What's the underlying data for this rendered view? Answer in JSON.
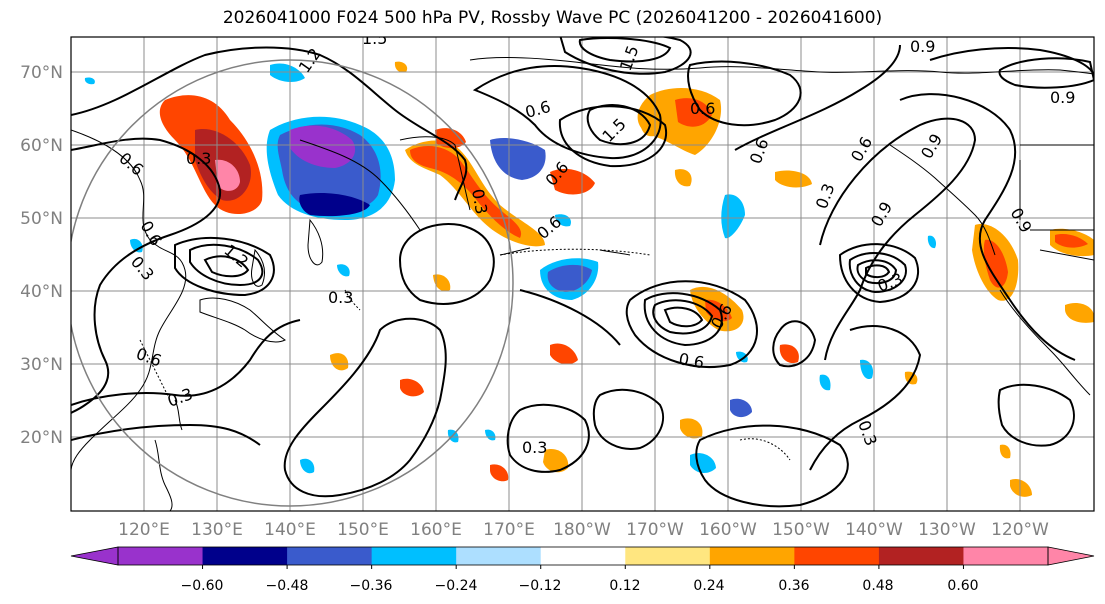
{
  "title": "2026041000 F024 500 hPa PV, Rossby Wave PC (2026041200 - 2026041600)",
  "map": {
    "lat_labels": [
      "70°N",
      "60°N",
      "50°N",
      "40°N",
      "30°N",
      "20°N"
    ],
    "lon_labels": [
      "120°E",
      "130°E",
      "140°E",
      "150°E",
      "160°E",
      "170°E",
      "180°W",
      "170°W",
      "160°W",
      "150°W",
      "140°W",
      "130°W",
      "120°W"
    ],
    "contour_labels": [
      "1.5",
      "1.2",
      "0.3",
      "0.9",
      "0.6",
      "0.9",
      "0.6",
      "0.3",
      "0.6",
      "0.3",
      "0.6",
      "0.6",
      "0.6",
      "0.3",
      "0.9",
      "1.5",
      "1.5",
      "0.6",
      "0.6",
      "0.3",
      "0.3",
      "0.3",
      "0.6",
      "0.3",
      "1.2",
      "0.6",
      "0.6",
      "0.9",
      "0.9",
      "0.3"
    ]
  },
  "colorbar": {
    "ticks": [
      "−0.60",
      "−0.48",
      "−0.36",
      "−0.24",
      "−0.12",
      "0.12",
      "0.24",
      "0.36",
      "0.48",
      "0.60"
    ],
    "colors": [
      "#9932CC",
      "#00008B",
      "#3A5BCC",
      "#00BFFF",
      "#ADDFFF",
      "#FFFFFF",
      "#FFE680",
      "#FFA500",
      "#FF4500",
      "#B22222",
      "#FF85A8"
    ]
  }
}
